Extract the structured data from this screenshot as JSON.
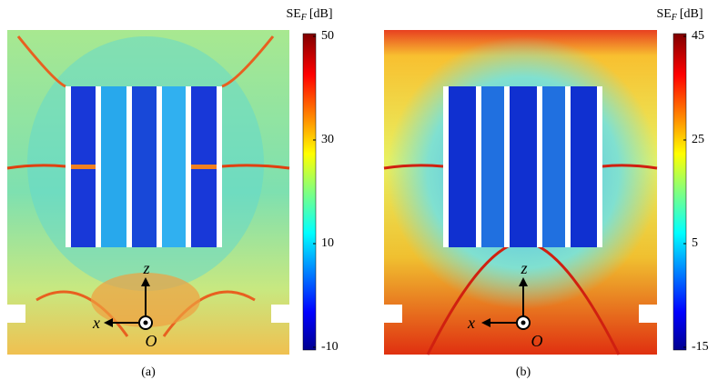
{
  "panels": [
    {
      "label": "(a)",
      "colorbar": {
        "title": "SE",
        "title_sub": "F",
        "title_unit": "[dB]",
        "lim": [
          -10,
          50
        ],
        "ticks": [
          50,
          30,
          10,
          -10
        ]
      },
      "axes": {
        "z": "z",
        "x": "x",
        "origin": "O"
      }
    },
    {
      "label": "(b)",
      "colorbar": {
        "title": "SE",
        "title_sub": "F",
        "title_unit": "[dB]",
        "lim": [
          -15,
          45
        ],
        "ticks": [
          45,
          25,
          5,
          -15
        ]
      },
      "axes": {
        "z": "z",
        "x": "x",
        "origin": "O"
      }
    }
  ]
}
